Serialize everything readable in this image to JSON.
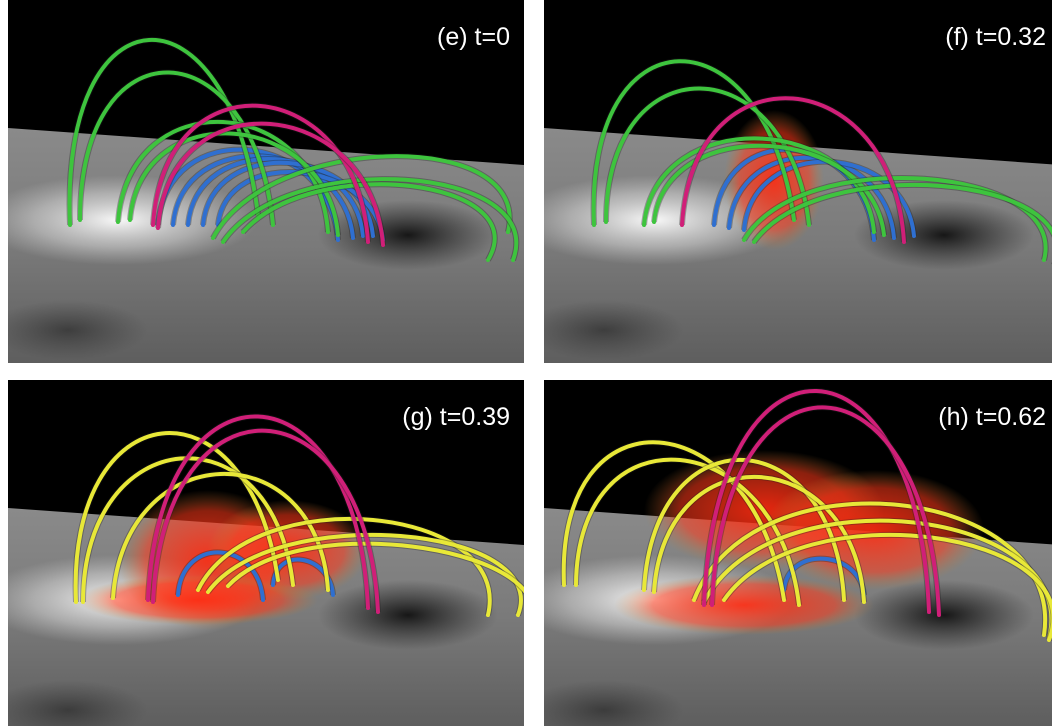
{
  "panels": [
    {
      "label": "(e) t=0"
    },
    {
      "label": "(f) t=0.32"
    },
    {
      "label": "(g) t=0.39"
    },
    {
      "label": "(h) t=0.62"
    }
  ]
}
